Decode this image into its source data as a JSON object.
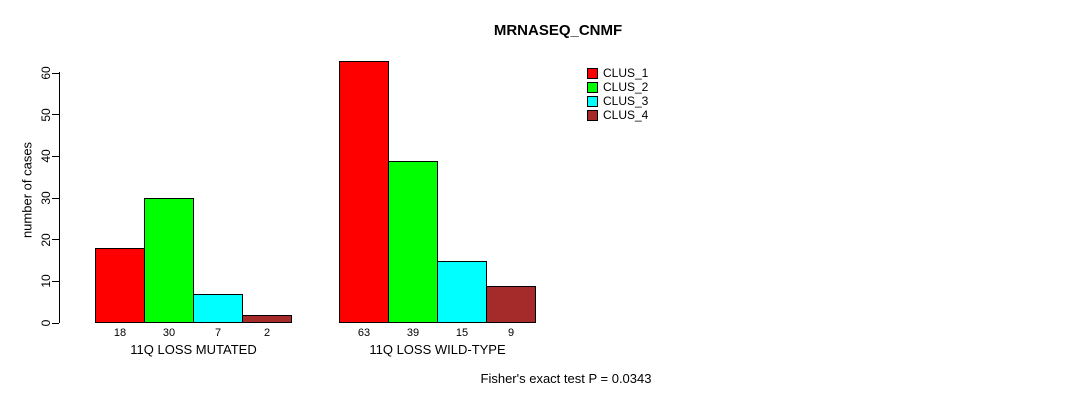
{
  "chart": {
    "background": "#ffffff",
    "text_color": "#000000"
  },
  "chart_data": {
    "type": "bar",
    "title": "MRNASEQ_CNMF",
    "xlabel": "",
    "ylabel": "number of cases",
    "ylim": [
      0,
      60
    ],
    "yticks": [
      0,
      10,
      20,
      30,
      40,
      50,
      60
    ],
    "grid": false,
    "legend_position": "top-right",
    "categories": [
      "11Q LOSS MUTATED",
      "11Q LOSS WILD-TYPE"
    ],
    "series": [
      {
        "name": "CLUS_1",
        "color": "#FF0000",
        "values": [
          18,
          63
        ]
      },
      {
        "name": "CLUS_2",
        "color": "#00FF00",
        "values": [
          30,
          39
        ]
      },
      {
        "name": "CLUS_3",
        "color": "#00FFFF",
        "values": [
          7,
          15
        ]
      },
      {
        "name": "CLUS_4",
        "color": "#A52A2A",
        "values": [
          2,
          9
        ]
      }
    ],
    "bar_labels": [
      [
        18,
        30,
        7,
        2
      ],
      [
        63,
        39,
        15,
        9
      ]
    ],
    "annotation": "Fisher's exact test P = 0.0343"
  }
}
